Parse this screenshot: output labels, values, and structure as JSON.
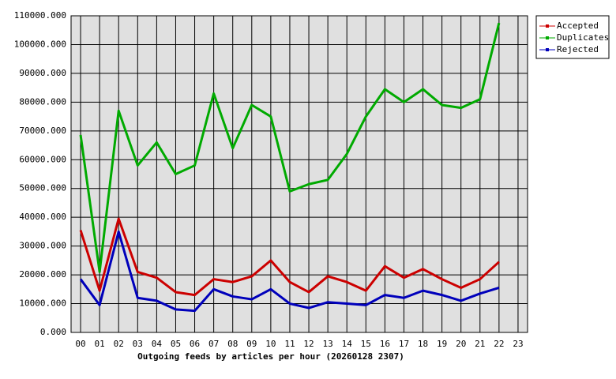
{
  "chart_data": {
    "type": "line",
    "x_label": "Outgoing feeds by articles per hour (20260128 2307)",
    "categories": [
      "00",
      "01",
      "02",
      "03",
      "04",
      "05",
      "06",
      "07",
      "08",
      "09",
      "10",
      "11",
      "12",
      "13",
      "14",
      "15",
      "16",
      "17",
      "18",
      "19",
      "20",
      "21",
      "22",
      "23"
    ],
    "series": [
      {
        "name": "Accepted",
        "color": "#cc0000",
        "values": [
          35500,
          14500,
          39500,
          21000,
          19000,
          14000,
          13000,
          18500,
          17500,
          19500,
          25000,
          17500,
          14000,
          19500,
          17500,
          14500,
          23000,
          19000,
          22000,
          18500,
          15500,
          18500,
          24500,
          null
        ]
      },
      {
        "name": "Duplicates",
        "color": "#00aa00",
        "values": [
          68600,
          21000,
          77000,
          58000,
          66000,
          55000,
          58000,
          83000,
          64000,
          79000,
          75000,
          49000,
          51500,
          53000,
          62000,
          75000,
          84500,
          80000,
          84500,
          79000,
          78000,
          81000,
          107500,
          null
        ]
      },
      {
        "name": "Rejected",
        "color": "#0000bb",
        "values": [
          18500,
          9500,
          35000,
          12000,
          11000,
          8000,
          7500,
          15000,
          12500,
          11500,
          15000,
          10000,
          8500,
          10500,
          10000,
          9500,
          13000,
          12000,
          14500,
          13000,
          11000,
          13500,
          15500,
          null
        ]
      }
    ],
    "ylim": [
      0,
      110000
    ],
    "yticks": [
      {
        "value": 0,
        "label": "0.000"
      },
      {
        "value": 10000,
        "label": "10000.000"
      },
      {
        "value": 20000,
        "label": "20000.000"
      },
      {
        "value": 30000,
        "label": "30000.000"
      },
      {
        "value": 40000,
        "label": "40000.000"
      },
      {
        "value": 50000,
        "label": "50000.000"
      },
      {
        "value": 60000,
        "label": "60000.000"
      },
      {
        "value": 70000,
        "label": "70000.000"
      },
      {
        "value": 80000,
        "label": "80000.000"
      },
      {
        "value": 90000,
        "label": "90000.000"
      },
      {
        "value": 100000,
        "label": "100000.000"
      },
      {
        "value": 110000,
        "label": "110000.000"
      }
    ],
    "grid": true,
    "legend": "top-right",
    "background": "#e0e0e0"
  }
}
